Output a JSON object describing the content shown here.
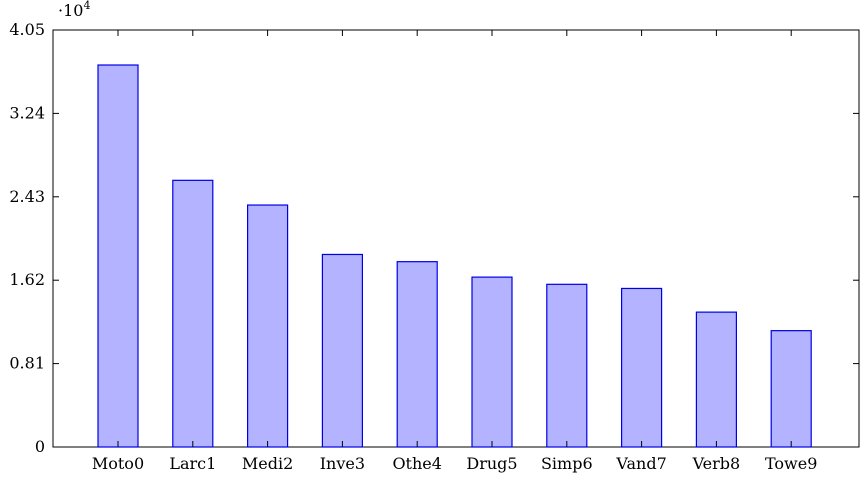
{
  "chart_data": {
    "type": "bar",
    "categories": [
      "Moto0",
      "Larc1",
      "Medi2",
      "Inve3",
      "Othe4",
      "Drug5",
      "Simp6",
      "Vand7",
      "Verb8",
      "Towe9"
    ],
    "values": [
      37100,
      25900,
      23500,
      18700,
      18000,
      16500,
      15800,
      15400,
      13100,
      11300
    ],
    "ylim": [
      0,
      40500
    ],
    "yticks": [
      0,
      8100,
      16200,
      24300,
      32400,
      40500
    ],
    "ytick_labels": [
      "0",
      "0.81",
      "1.62",
      "2.43",
      "3.24",
      "4.05"
    ],
    "y_multiplier_base": "·10",
    "y_multiplier_exp": "4",
    "title": "",
    "xlabel": "",
    "ylabel": "",
    "grid": false,
    "colors": {
      "bar_fill": "#b3b3ff",
      "bar_stroke": "#0000e6"
    }
  }
}
